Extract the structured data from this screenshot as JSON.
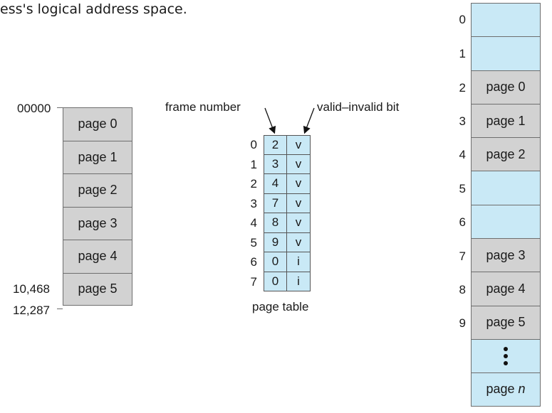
{
  "caption": "ess's logical address space.",
  "logical_memory": {
    "pages": [
      "page 0",
      "page 1",
      "page 2",
      "page 3",
      "page 4",
      "page 5"
    ],
    "addr_start": "00000",
    "addr_page5": "10,468",
    "addr_end": "12,287"
  },
  "page_table": {
    "frame_label": "frame number",
    "valid_label": "valid–invalid bit",
    "caption": "page table",
    "rows": [
      {
        "index": "0",
        "frame": "2",
        "bit": "v"
      },
      {
        "index": "1",
        "frame": "3",
        "bit": "v"
      },
      {
        "index": "2",
        "frame": "4",
        "bit": "v"
      },
      {
        "index": "3",
        "frame": "7",
        "bit": "v"
      },
      {
        "index": "4",
        "frame": "8",
        "bit": "v"
      },
      {
        "index": "5",
        "frame": "9",
        "bit": "v"
      },
      {
        "index": "6",
        "frame": "0",
        "bit": "i"
      },
      {
        "index": "7",
        "frame": "0",
        "bit": "i"
      }
    ]
  },
  "physical_memory": {
    "frames": [
      {
        "index": "0",
        "content": "",
        "fill": "#c9e9f6"
      },
      {
        "index": "1",
        "content": "",
        "fill": "#c9e9f6"
      },
      {
        "index": "2",
        "content": "page 0",
        "fill": "#d2d2d2"
      },
      {
        "index": "3",
        "content": "page 1",
        "fill": "#d2d2d2"
      },
      {
        "index": "4",
        "content": "page 2",
        "fill": "#d2d2d2"
      },
      {
        "index": "5",
        "content": "",
        "fill": "#c9e9f6"
      },
      {
        "index": "6",
        "content": "",
        "fill": "#c9e9f6"
      },
      {
        "index": "7",
        "content": "page 3",
        "fill": "#d2d2d2"
      },
      {
        "index": "8",
        "content": "page 4",
        "fill": "#d2d2d2"
      },
      {
        "index": "9",
        "content": "page 5",
        "fill": "#d2d2d2"
      },
      {
        "index": "",
        "content": "",
        "fill": "#c9e9f6",
        "ellipsis": true
      },
      {
        "index": "",
        "content": "page",
        "suffix": "n",
        "fill": "#c9e9f6"
      }
    ]
  }
}
